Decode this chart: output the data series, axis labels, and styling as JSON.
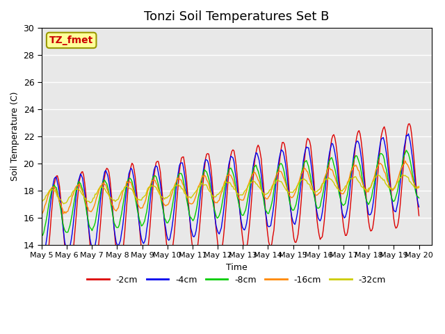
{
  "title": "Tonzi Soil Temperatures Set B",
  "xlabel": "Time",
  "ylabel": "Soil Temperature (C)",
  "ylim": [
    14,
    30
  ],
  "xlim_days": [
    0,
    15.5
  ],
  "annotation": "TZ_fmet",
  "annotation_color": "#cc0000",
  "annotation_bg": "#ffff99",
  "annotation_border": "#999900",
  "bg_color": "#e8e8e8",
  "grid_color": "white",
  "series": [
    {
      "label": "-2cm",
      "color": "#dd0000",
      "amplitude": 3.8,
      "phase": 0.35,
      "base_min": 15.2,
      "trend": 0.27
    },
    {
      "label": "-4cm",
      "color": "#0000ee",
      "amplitude": 2.8,
      "phase": 0.3,
      "base_min": 16.0,
      "trend": 0.23
    },
    {
      "label": "-8cm",
      "color": "#00cc00",
      "amplitude": 1.8,
      "phase": 0.25,
      "base_min": 16.5,
      "trend": 0.18
    },
    {
      "label": "-16cm",
      "color": "#ff8800",
      "amplitude": 1.0,
      "phase": 0.2,
      "base_min": 17.2,
      "trend": 0.13
    },
    {
      "label": "-32cm",
      "color": "#cccc00",
      "amplitude": 0.5,
      "phase": 0.15,
      "base_min": 17.5,
      "trend": 0.08
    }
  ],
  "x_ticks": [
    0,
    1,
    2,
    3,
    4,
    5,
    6,
    7,
    8,
    9,
    10,
    11,
    12,
    13,
    14,
    15
  ],
  "x_tick_labels": [
    "May 5",
    "May 6",
    "May 7",
    "May 8",
    "May 9",
    "May 10",
    "May 11",
    "May 12",
    "May 13",
    "May 14",
    "May 15",
    "May 16",
    "May 17",
    "May 18",
    "May 19",
    "May 20"
  ],
  "tick_fontsize": 8,
  "title_fontsize": 13
}
